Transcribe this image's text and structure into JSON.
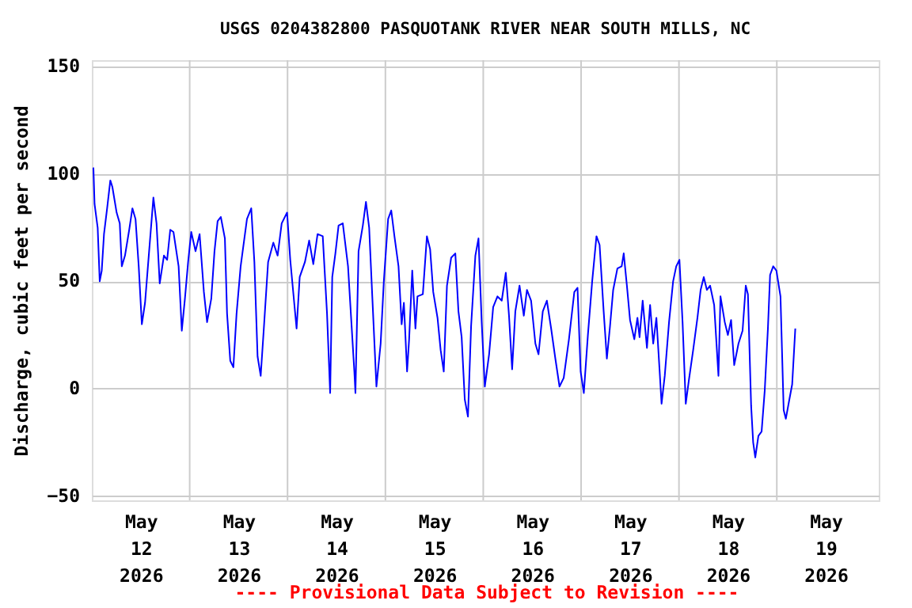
{
  "chart_data": {
    "type": "line",
    "title": "USGS 0204382800 PASQUOTANK RIVER NEAR SOUTH MILLS, NC",
    "ylabel": "Discharge, cubic feet per second",
    "annotations": [
      "---- Provisional Data Subject to Revision ----"
    ],
    "x": [
      "2026-05-11T12:23",
      "2026-05-11T12:40",
      "2026-05-11T13:26",
      "2026-05-11T13:56",
      "2026-05-11T14:26",
      "2026-05-11T14:59",
      "2026-05-11T15:45",
      "2026-05-11T16:32",
      "2026-05-11T17:02",
      "2026-05-11T18:05",
      "2026-05-11T18:51",
      "2026-05-11T19:21",
      "2026-05-11T20:08",
      "2026-05-11T21:10",
      "2026-05-11T21:57",
      "2026-05-11T22:43",
      "2026-05-11T23:30",
      "2026-05-12T00:16",
      "2026-05-12T01:03",
      "2026-05-12T02:03",
      "2026-05-12T03:06",
      "2026-05-12T03:52",
      "2026-05-12T04:39",
      "2026-05-12T05:41",
      "2026-05-12T06:28",
      "2026-05-12T07:14",
      "2026-05-12T08:01",
      "2026-05-12T09:17",
      "2026-05-12T10:04",
      "2026-05-12T10:50",
      "2026-05-12T11:37",
      "2026-05-12T12:23",
      "2026-05-12T13:26",
      "2026-05-12T14:26",
      "2026-05-12T15:29",
      "2026-05-12T16:16",
      "2026-05-12T17:18",
      "2026-05-12T18:05",
      "2026-05-12T18:51",
      "2026-05-12T19:38",
      "2026-05-12T20:38",
      "2026-05-12T21:10",
      "2026-05-12T21:57",
      "2026-05-12T22:43",
      "2026-05-12T23:30",
      "2026-05-13T00:30",
      "2026-05-13T02:03",
      "2026-05-13T03:06",
      "2026-05-13T03:52",
      "2026-05-13T04:39",
      "2026-05-13T05:25",
      "2026-05-13T06:11",
      "2026-05-13T07:14",
      "2026-05-13T08:31",
      "2026-05-13T09:34",
      "2026-05-13T10:34",
      "2026-05-13T11:53",
      "2026-05-13T12:40",
      "2026-05-13T14:13",
      "2026-05-13T14:59",
      "2026-05-13T16:16",
      "2026-05-13T17:18",
      "2026-05-13T18:19",
      "2026-05-13T19:22",
      "2026-05-13T20:38",
      "2026-05-13T21:41",
      "2026-05-13T22:27",
      "2026-05-13T22:58",
      "2026-05-13T23:44",
      "2026-05-14T00:31",
      "2026-05-14T01:33",
      "2026-05-14T02:50",
      "2026-05-14T04:23",
      "2026-05-14T04:39",
      "2026-05-14T05:25",
      "2026-05-14T06:28",
      "2026-05-14T07:14",
      "2026-05-14T08:01",
      "2026-05-14T08:47",
      "2026-05-14T09:48",
      "2026-05-14T10:50",
      "2026-05-14T11:37",
      "2026-05-14T12:40",
      "2026-05-14T13:26",
      "2026-05-14T14:13",
      "2026-05-14T15:13",
      "2026-05-14T15:59",
      "2026-05-14T16:32",
      "2026-05-14T17:19",
      "2026-05-14T17:49",
      "2026-05-14T18:35",
      "2026-05-14T19:22",
      "2026-05-14T19:52",
      "2026-05-14T21:11",
      "2026-05-14T22:11",
      "2026-05-14T22:58",
      "2026-05-14T23:44",
      "2026-05-15T00:47",
      "2026-05-15T01:33",
      "2026-05-15T02:19",
      "2026-05-15T03:06",
      "2026-05-15T04:08",
      "2026-05-15T05:09",
      "2026-05-15T05:55",
      "2026-05-15T06:42",
      "2026-05-15T07:28",
      "2026-05-15T08:15",
      "2026-05-15T09:01",
      "2026-05-15T10:04",
      "2026-05-15T10:50",
      "2026-05-15T11:37",
      "2026-05-15T12:23",
      "2026-05-15T13:26",
      "2026-05-15T14:26",
      "2026-05-15T15:29",
      "2026-05-15T16:32",
      "2026-05-15T17:32",
      "2026-05-15T18:19",
      "2026-05-15T19:05",
      "2026-05-15T19:52",
      "2026-05-15T20:54",
      "2026-05-15T21:57",
      "2026-05-15T22:43",
      "2026-05-15T23:44",
      "2026-05-16T00:47",
      "2026-05-16T01:33",
      "2026-05-16T02:36",
      "2026-05-16T03:36",
      "2026-05-16T04:39",
      "2026-05-16T05:41",
      "2026-05-16T06:42",
      "2026-05-16T07:44",
      "2026-05-16T09:01",
      "2026-05-16T10:20",
      "2026-05-16T11:07",
      "2026-05-16T11:53",
      "2026-05-16T12:40",
      "2026-05-16T13:40",
      "2026-05-16T14:43",
      "2026-05-16T15:46",
      "2026-05-16T16:32",
      "2026-05-16T17:32",
      "2026-05-16T18:19",
      "2026-05-16T19:05",
      "2026-05-16T19:52",
      "2026-05-16T20:54",
      "2026-05-16T21:57",
      "2026-05-16T22:27",
      "2026-05-16T23:14",
      "2026-05-17T00:00",
      "2026-05-17T01:03",
      "2026-05-17T01:49",
      "2026-05-17T02:20",
      "2026-05-17T03:06",
      "2026-05-17T04:09",
      "2026-05-17T04:55",
      "2026-05-17T05:41",
      "2026-05-17T06:28",
      "2026-05-17T07:14",
      "2026-05-17T07:44",
      "2026-05-17T08:31",
      "2026-05-17T09:34",
      "2026-05-17T10:34",
      "2026-05-17T11:20",
      "2026-05-17T12:07",
      "2026-05-17T12:53",
      "2026-05-17T13:40",
      "2026-05-17T14:26",
      "2026-05-17T15:29",
      "2026-05-17T16:32",
      "2026-05-17T17:19",
      "2026-05-17T18:05",
      "2026-05-17T18:51",
      "2026-05-17T19:38",
      "2026-05-17T20:38",
      "2026-05-17T21:41",
      "2026-05-17T22:11",
      "2026-05-17T23:14",
      "2026-05-18T00:00",
      "2026-05-18T00:47",
      "2026-05-18T01:33",
      "2026-05-18T02:36",
      "2026-05-18T03:36",
      "2026-05-18T04:23",
      "2026-05-18T04:55",
      "2026-05-18T05:42",
      "2026-05-18T06:12",
      "2026-05-18T06:43",
      "2026-05-18T07:29",
      "2026-05-18T08:16",
      "2026-05-18T09:02",
      "2026-05-18T09:49",
      "2026-05-18T10:21",
      "2026-05-18T11:07",
      "2026-05-18T11:54",
      "2026-05-18T12:54",
      "2026-05-18T13:41",
      "2026-05-18T14:13",
      "2026-05-18T14:59",
      "2026-05-18T15:46",
      "2026-05-18T16:32"
    ],
    "series": [
      {
        "color": "#0000ff",
        "values": [
          103,
          86,
          75,
          50,
          55,
          72,
          84,
          97,
          94,
          82,
          77,
          57,
          62,
          74,
          84,
          79,
          57,
          30,
          40,
          64,
          89,
          77,
          49,
          62,
          60,
          74,
          73,
          57,
          27,
          42,
          59,
          73,
          64,
          72,
          45,
          31,
          42,
          64,
          78,
          80,
          70,
          35,
          13,
          10,
          35,
          57,
          79,
          84,
          59,
          15,
          6,
          28,
          59,
          68,
          62,
          77,
          82,
          60,
          28,
          52,
          59,
          69,
          58,
          72,
          71,
          35,
          -2,
          52,
          63,
          76,
          77,
          57,
          8,
          -2,
          64,
          76,
          87,
          75,
          43,
          1,
          21,
          50,
          79,
          83,
          71,
          57,
          30,
          40,
          8,
          23,
          55,
          28,
          43,
          44,
          71,
          65,
          45,
          33,
          18,
          8,
          48,
          61,
          63,
          36,
          24,
          -5,
          -13,
          29,
          62,
          70,
          31,
          1,
          16,
          38,
          43,
          41,
          54,
          34,
          9,
          36,
          48,
          34,
          46,
          41,
          21,
          16,
          36,
          41,
          28,
          14,
          1,
          5,
          23,
          45,
          47,
          8,
          -2,
          25,
          50,
          71,
          67,
          36,
          14,
          29,
          46,
          56,
          57,
          63,
          48,
          32,
          23,
          33,
          24,
          41,
          19,
          39,
          21,
          33,
          9,
          -7,
          6,
          31,
          50,
          57,
          60,
          31,
          -7,
          4,
          18,
          33,
          46,
          52,
          46,
          48,
          39,
          6,
          43,
          31,
          25,
          32,
          11,
          21,
          27,
          48,
          44,
          -8,
          -25,
          -32,
          -22,
          -20,
          -1,
          28,
          53,
          57,
          55,
          43,
          -10,
          -14,
          -6,
          2,
          28
        ]
      }
    ],
    "xlim": [
      "2026-05-11T12:00",
      "2026-05-19T13:00"
    ],
    "xticks": [
      {
        "value": "2026-05-12T00:00",
        "label": "May 12 2026"
      },
      {
        "value": "2026-05-13T00:00",
        "label": "May 13 2026"
      },
      {
        "value": "2026-05-14T00:00",
        "label": "May 14 2026"
      },
      {
        "value": "2026-05-15T00:00",
        "label": "May 15 2026"
      },
      {
        "value": "2026-05-16T00:00",
        "label": "May 16 2026"
      },
      {
        "value": "2026-05-17T00:00",
        "label": "May 17 2026"
      },
      {
        "value": "2026-05-18T00:00",
        "label": "May 18 2026"
      },
      {
        "value": "2026-05-19T00:00",
        "label": "May 19 2026"
      },
      {
        "value": "2026-05-12T12:00",
        "label": null
      },
      {
        "value": "2026-05-13T12:00",
        "label": null
      },
      {
        "value": "2026-05-14T12:00",
        "label": null
      },
      {
        "value": "2026-05-15T12:00",
        "label": null
      },
      {
        "value": "2026-05-16T12:00",
        "label": null
      },
      {
        "value": "2026-05-17T12:00",
        "label": null
      },
      {
        "value": "2026-05-18T12:00",
        "label": null
      }
    ],
    "ylim": [
      -52,
      153
    ],
    "yticks": [
      -50,
      0,
      50,
      100,
      150
    ],
    "grid": true,
    "legend": false,
    "marker": "none",
    "line_style": "solid"
  }
}
